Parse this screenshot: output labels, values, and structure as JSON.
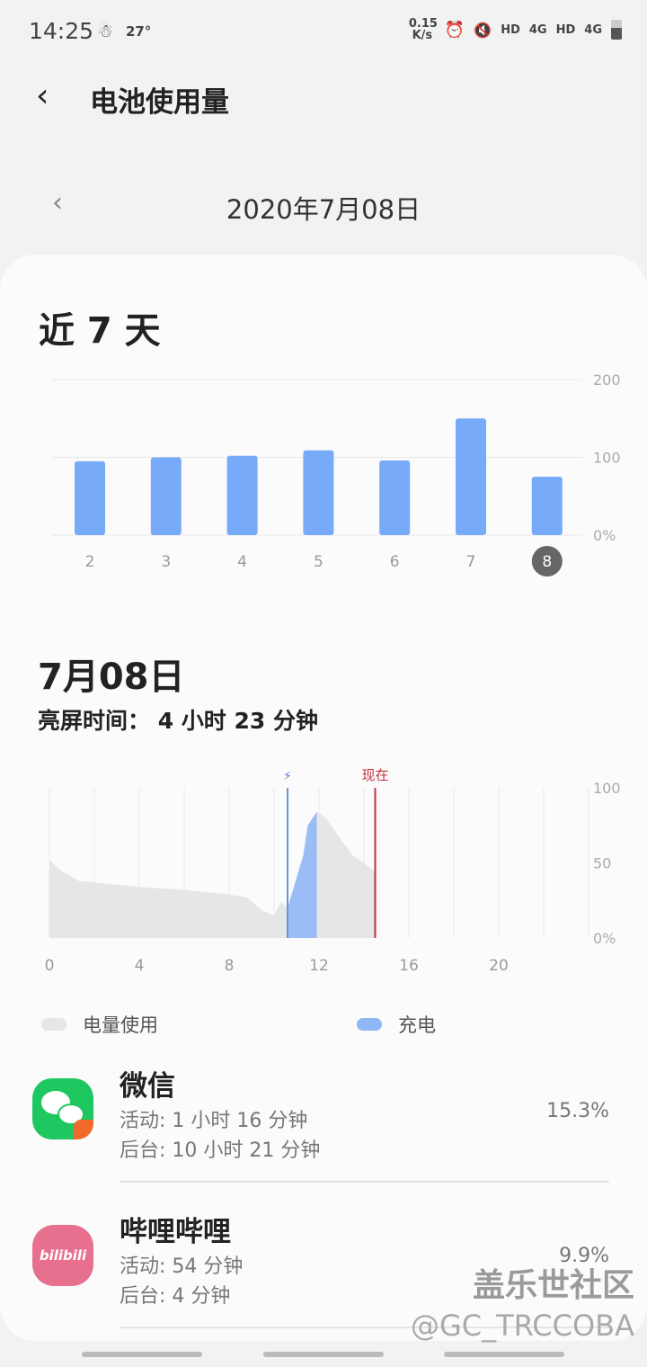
{
  "status_bar": {
    "time": "14:25",
    "temperature": "27°",
    "net_speed": "0.15 K/s",
    "icons": [
      "weather-icon",
      "alarm-icon",
      "mute-icon",
      "hd-icon",
      "4g-signal-icon",
      "hd-icon",
      "4g-signal-icon",
      "battery-icon"
    ],
    "hd": "HD",
    "net": "4G"
  },
  "header": {
    "title": "电池使用量"
  },
  "date_nav": {
    "date": "2020年7月08日"
  },
  "week": {
    "title": "近 7 天"
  },
  "chart_data": [
    {
      "type": "bar",
      "categories": [
        "2",
        "3",
        "4",
        "5",
        "6",
        "7",
        "8"
      ],
      "values": [
        95,
        100,
        102,
        109,
        96,
        150,
        75
      ],
      "selected": "8",
      "yticks": [
        "200",
        "100",
        "0%"
      ],
      "ylim": [
        0,
        200
      ],
      "grid": true,
      "color": "#78aafa"
    },
    {
      "type": "area",
      "x": [
        0,
        0.5,
        1.3,
        2,
        4,
        6,
        8,
        8.8,
        9.5,
        10,
        10.3,
        10.6,
        11.3,
        11.5,
        11.9,
        12.3,
        13,
        13.5,
        14,
        14.5
      ],
      "y": [
        52,
        45,
        38,
        37,
        34,
        32,
        29,
        27,
        18,
        15,
        24,
        20,
        55,
        75,
        84,
        80,
        65,
        55,
        50,
        44
      ],
      "charging_range": [
        10.6,
        11.9
      ],
      "now": 14.5,
      "now_label": "现在",
      "xticks": [
        "0",
        "4",
        "8",
        "12",
        "16",
        "20"
      ],
      "yticks": [
        "100",
        "50",
        "0%"
      ],
      "xlim": [
        0,
        24
      ],
      "ylim": [
        0,
        100
      ],
      "legend": [
        {
          "name": "电量使用",
          "color": "#e6e6e6"
        },
        {
          "name": "充电",
          "color": "#8fb6f5"
        }
      ],
      "legend_placement": "bottom"
    }
  ],
  "day": {
    "title": "7月08日",
    "screen_time": "亮屏时间：  4 小时 23 分钟"
  },
  "apps": [
    {
      "name": "微信",
      "active": "活动: 1 小时 16 分钟",
      "background": "后台: 10 小时 21 分钟",
      "percent": "15.3%"
    },
    {
      "name": "哔哩哔哩",
      "active": "活动: 54 分钟",
      "background": "后台: 4 分钟",
      "percent": "9.9%",
      "icon_text": "bilibili"
    }
  ],
  "watermark": {
    "line1": "盖乐世社区",
    "line2": "@GC_TRCCOBA"
  }
}
